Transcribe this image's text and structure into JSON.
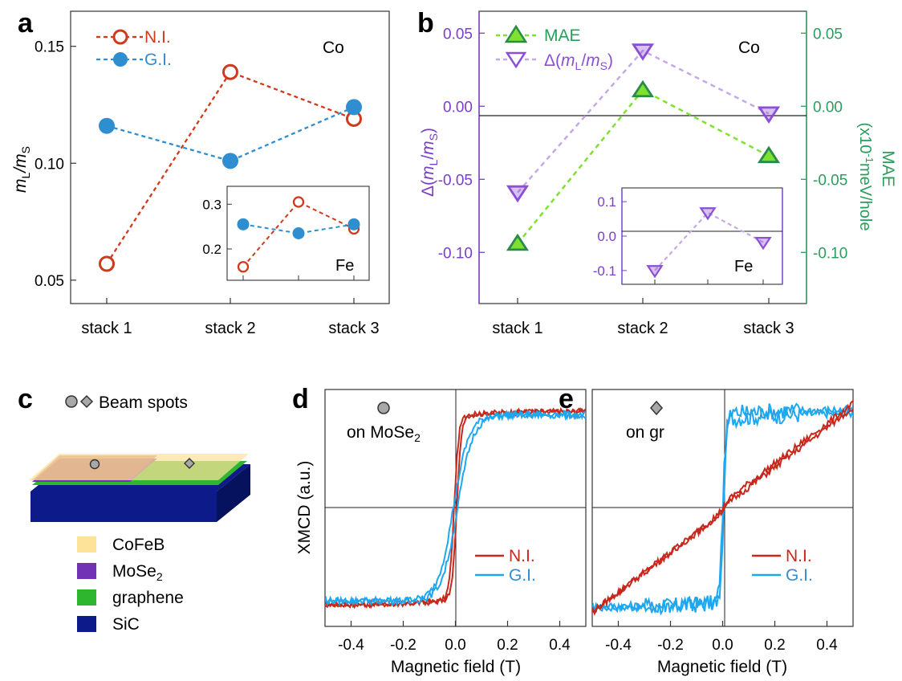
{
  "colors": {
    "ni": "#d03a1c",
    "gi": "#2f8ed0",
    "gi_curve": "#1ea7ef",
    "ni_curve": "#c8281c",
    "mae": "#7fe12f",
    "mae_edge": "#2a8a4a",
    "delta": "#8b4fd6",
    "delta_line": "#c4a9e6",
    "right_axis": "#2a9d5c",
    "left_axis_b": "#7a3fc8",
    "cofeb": "#fde29a",
    "mose2": "#7232b5",
    "graphene": "#2eb62e",
    "sic": "#0d1b8a"
  },
  "panels": {
    "a": "a",
    "b": "b",
    "c": "c",
    "d": "d",
    "e": "e"
  },
  "chart_data": [
    {
      "id": "a",
      "type": "line",
      "ylabel_main": "m",
      "ylabel_sub1": "L",
      "ylabel_slash": "/m",
      "ylabel_sub2": "S",
      "categories": [
        "stack 1",
        "stack 2",
        "stack 3"
      ],
      "ylim": [
        0.04,
        0.165
      ],
      "yticks": [
        0.05,
        0.1,
        0.15
      ],
      "ytick_labels": [
        "0.05",
        "0.10",
        "0.15"
      ],
      "annotation": "Co",
      "legend": [
        "N.I.",
        "G.I."
      ],
      "series": [
        {
          "name": "N.I.",
          "values": [
            0.057,
            0.139,
            0.119
          ]
        },
        {
          "name": "G.I.",
          "values": [
            0.116,
            0.101,
            0.124
          ]
        }
      ],
      "inset": {
        "annotation": "Fe",
        "ylim": [
          0.13,
          0.34
        ],
        "yticks": [
          0.2,
          0.3
        ],
        "ytick_labels": [
          "0.2",
          "0.3"
        ],
        "series": [
          {
            "name": "N.I.",
            "values": [
              0.16,
              0.305,
              0.245
            ]
          },
          {
            "name": "G.I.",
            "values": [
              0.255,
              0.235,
              0.255
            ]
          }
        ]
      }
    },
    {
      "id": "b",
      "type": "line",
      "categories": [
        "stack 1",
        "stack 2",
        "stack 3"
      ],
      "ylim": [
        -0.135,
        0.065
      ],
      "yticks": [
        -0.1,
        -0.05,
        0.0,
        0.05
      ],
      "ytick_labels": [
        "-0.10",
        "-0.05",
        "0.00",
        "0.05"
      ],
      "ylabel_left": "Δ(mL/mS)",
      "ylabel_right_1": "MAE",
      "ylabel_right_2": "(x10⁻¹meV/hole",
      "annotation": "Co",
      "legend": [
        "MAE",
        "Δ(mL/mS)"
      ],
      "series": [
        {
          "name": "MAE",
          "values": [
            -0.094,
            0.011,
            -0.034
          ]
        },
        {
          "name": "Δ(mL/mS)",
          "values": [
            -0.059,
            0.038,
            -0.005
          ]
        }
      ],
      "inset": {
        "annotation": "Fe",
        "ylim": [
          -0.14,
          0.14
        ],
        "yticks": [
          -0.1,
          0.0,
          0.1
        ],
        "ytick_labels": [
          "-0.1",
          "0.0",
          "0.1"
        ],
        "series": [
          {
            "name": "Δ(mL/mS)",
            "values": [
              -0.1,
              0.068,
              -0.018
            ]
          }
        ]
      }
    },
    {
      "id": "d",
      "type": "line",
      "xlabel": "Magnetic field (T)",
      "ylabel": "XMCD (a.u.)",
      "xlim": [
        -0.5,
        0.5
      ],
      "xticks": [
        -0.4,
        -0.2,
        0.0,
        0.2,
        0.4
      ],
      "xtick_labels": [
        "-0.4",
        "-0.2",
        "0.0",
        "0.2",
        "0.4"
      ],
      "annotation": "on MoSe2",
      "legend": [
        "N.I.",
        "G.I."
      ]
    },
    {
      "id": "e",
      "type": "line",
      "xlabel": "Magnetic field (T)",
      "xlim": [
        -0.5,
        0.5
      ],
      "xticks": [
        -0.4,
        -0.2,
        0.0,
        0.2,
        0.4
      ],
      "xtick_labels": [
        "-0.4",
        "-0.2",
        "0.0",
        "0.2",
        "0.4"
      ],
      "annotation": "on gr",
      "legend": [
        "N.I.",
        "G.I."
      ]
    }
  ],
  "schematic": {
    "beam_spots_label": "Beam spots",
    "legend": [
      "CoFeB",
      "MoSe2",
      "graphene",
      "SiC"
    ]
  }
}
